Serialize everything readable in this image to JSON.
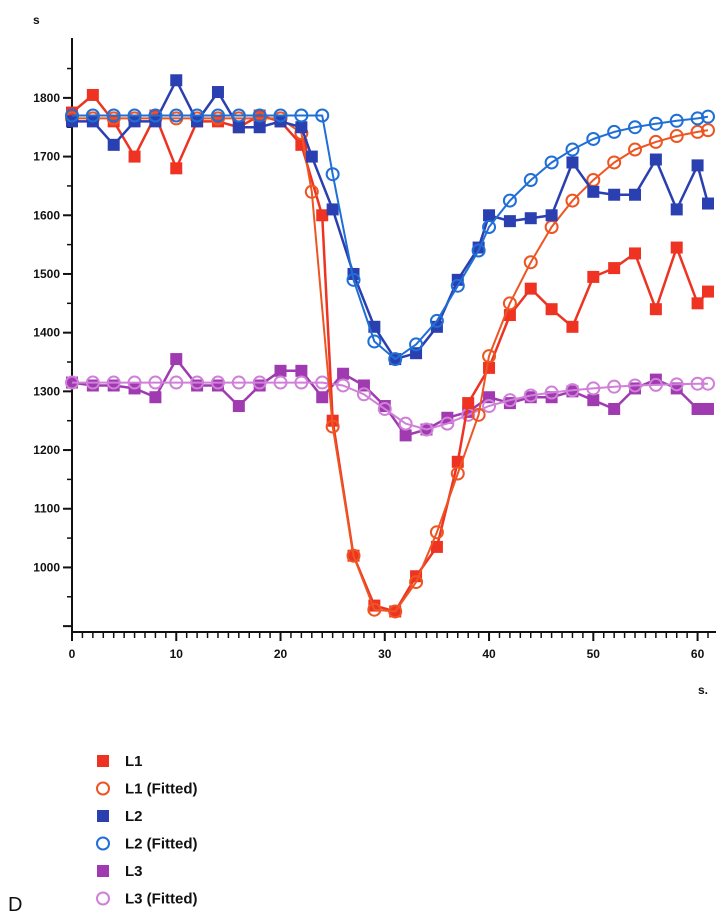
{
  "panel_label": "D",
  "chart_data": {
    "type": "line",
    "title": "",
    "ylabel": "s",
    "xlabel": "s.",
    "xlim": [
      0,
      61
    ],
    "ylim": [
      890,
      1885
    ],
    "x_ticks": [
      0,
      10,
      20,
      30,
      40,
      50,
      60
    ],
    "x_tick_labels": [
      "0",
      "10",
      "20",
      "30",
      "40",
      "50",
      "60"
    ],
    "y_ticks": [
      1000,
      1100,
      1200,
      1300,
      1400,
      1500,
      1600,
      1700,
      1800
    ],
    "y_tick_labels": [
      "1000",
      "1100",
      "1200",
      "1300",
      "1400",
      "1500",
      "1600",
      "1700",
      "1800"
    ],
    "grid": false,
    "legend_position": "bottom-left",
    "series": [
      {
        "name": "L1",
        "color": "#ee3322",
        "marker": "square",
        "x": [
          0,
          2,
          4,
          6,
          8,
          10,
          12,
          14,
          16,
          18,
          20,
          22,
          24,
          25,
          27,
          29,
          31,
          33,
          35,
          37,
          38,
          40,
          42,
          44,
          46,
          48,
          50,
          52,
          54,
          56,
          58,
          60,
          61
        ],
        "y": [
          1775,
          1805,
          1760,
          1700,
          1770,
          1680,
          1760,
          1760,
          1750,
          1770,
          1760,
          1720,
          1600,
          1250,
          1020,
          935,
          925,
          985,
          1035,
          1180,
          1280,
          1340,
          1430,
          1475,
          1440,
          1410,
          1495,
          1510,
          1535,
          1440,
          1545,
          1450,
          1470
        ]
      },
      {
        "name": "L1 (Fitted)",
        "color": "#ee5522",
        "marker": "circle",
        "x": [
          0,
          2,
          4,
          6,
          8,
          10,
          12,
          14,
          16,
          18,
          20,
          22,
          23,
          25,
          27,
          29,
          31,
          33,
          35,
          37,
          39,
          40,
          42,
          44,
          46,
          48,
          50,
          52,
          54,
          56,
          58,
          60,
          61
        ],
        "y": [
          1765,
          1765,
          1765,
          1765,
          1765,
          1765,
          1765,
          1765,
          1765,
          1765,
          1765,
          1740,
          1640,
          1240,
          1020,
          928,
          925,
          975,
          1060,
          1160,
          1260,
          1360,
          1450,
          1520,
          1580,
          1625,
          1660,
          1690,
          1712,
          1725,
          1735,
          1742,
          1745
        ]
      },
      {
        "name": "L2",
        "color": "#2a3fb0",
        "marker": "square",
        "x": [
          0,
          2,
          4,
          6,
          8,
          10,
          12,
          14,
          16,
          18,
          20,
          22,
          23,
          25,
          27,
          29,
          31,
          33,
          35,
          37,
          39,
          40,
          42,
          44,
          46,
          48,
          50,
          52,
          54,
          56,
          58,
          60,
          61
        ],
        "y": [
          1760,
          1760,
          1720,
          1760,
          1760,
          1830,
          1760,
          1810,
          1750,
          1750,
          1760,
          1750,
          1700,
          1610,
          1500,
          1410,
          1355,
          1365,
          1410,
          1490,
          1545,
          1600,
          1590,
          1595,
          1600,
          1690,
          1640,
          1635,
          1635,
          1695,
          1610,
          1685,
          1620
        ]
      },
      {
        "name": "L2 (Fitted)",
        "color": "#1f6fd6",
        "marker": "circle",
        "x": [
          0,
          2,
          4,
          6,
          8,
          10,
          12,
          14,
          16,
          18,
          20,
          22,
          24,
          25,
          27,
          29,
          31,
          33,
          35,
          37,
          39,
          40,
          42,
          44,
          46,
          48,
          50,
          52,
          54,
          56,
          58,
          60,
          61
        ],
        "y": [
          1770,
          1770,
          1770,
          1770,
          1770,
          1770,
          1770,
          1770,
          1770,
          1770,
          1770,
          1770,
          1770,
          1670,
          1490,
          1385,
          1355,
          1380,
          1420,
          1480,
          1540,
          1580,
          1625,
          1660,
          1690,
          1712,
          1730,
          1742,
          1750,
          1756,
          1761,
          1765,
          1768
        ]
      },
      {
        "name": "L3",
        "color": "#a03ab0",
        "marker": "square",
        "x": [
          0,
          2,
          4,
          6,
          8,
          10,
          12,
          14,
          16,
          18,
          20,
          22,
          24,
          26,
          28,
          30,
          32,
          34,
          36,
          38,
          40,
          42,
          44,
          46,
          48,
          50,
          52,
          54,
          56,
          58,
          60,
          61
        ],
        "y": [
          1315,
          1310,
          1310,
          1305,
          1290,
          1355,
          1310,
          1310,
          1275,
          1310,
          1335,
          1335,
          1290,
          1330,
          1310,
          1275,
          1225,
          1235,
          1255,
          1265,
          1290,
          1280,
          1290,
          1290,
          1300,
          1285,
          1270,
          1305,
          1320,
          1305,
          1270,
          1270
        ]
      },
      {
        "name": "L3 (Fitted)",
        "color": "#d080d8",
        "marker": "circle",
        "x": [
          0,
          2,
          4,
          6,
          8,
          10,
          12,
          14,
          16,
          18,
          20,
          22,
          24,
          26,
          28,
          30,
          32,
          34,
          36,
          38,
          40,
          42,
          44,
          46,
          48,
          50,
          52,
          54,
          56,
          58,
          60,
          61
        ],
        "y": [
          1315,
          1315,
          1315,
          1315,
          1315,
          1315,
          1315,
          1315,
          1315,
          1315,
          1315,
          1315,
          1315,
          1310,
          1295,
          1270,
          1245,
          1235,
          1245,
          1260,
          1275,
          1285,
          1293,
          1298,
          1302,
          1305,
          1308,
          1310,
          1311,
          1312,
          1313,
          1313
        ]
      }
    ]
  }
}
